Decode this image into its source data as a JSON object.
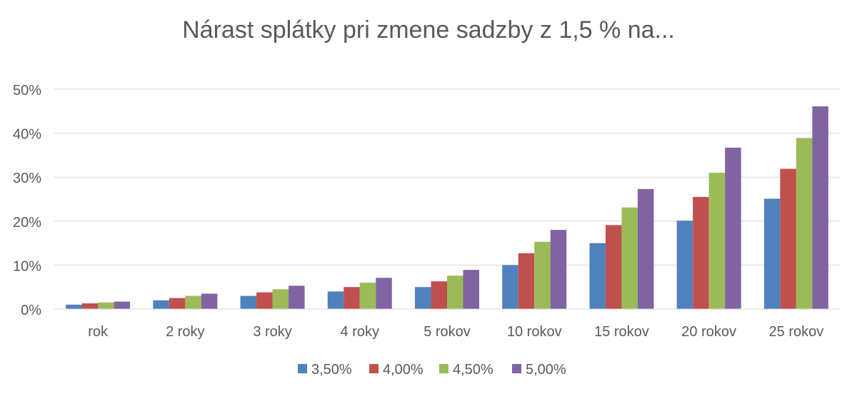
{
  "chart_data": {
    "type": "bar",
    "title": "Nárast splátky pri zmene sadzby z 1,5 % na...",
    "xlabel": "",
    "ylabel": "",
    "categories": [
      "rok",
      "2 roky",
      "3 roky",
      "4 roky",
      "5 rokov",
      "10 rokov",
      "15 rokov",
      "20 rokov",
      "25 rokov"
    ],
    "series": [
      {
        "name": "3,50%",
        "color": "#4f81bd",
        "values": [
          1.0,
          2.0,
          3.0,
          4.0,
          5.0,
          10.0,
          15.0,
          20.1,
          25.1
        ]
      },
      {
        "name": "4,00%",
        "color": "#c0504d",
        "values": [
          1.3,
          2.5,
          3.8,
          5.0,
          6.3,
          12.7,
          19.1,
          25.5,
          31.9
        ]
      },
      {
        "name": "4,50%",
        "color": "#9bbb59",
        "values": [
          1.5,
          3.0,
          4.5,
          6.0,
          7.6,
          15.3,
          23.1,
          31.0,
          38.9
        ]
      },
      {
        "name": "5,00%",
        "color": "#8064a2",
        "values": [
          1.7,
          3.5,
          5.3,
          7.1,
          8.9,
          18.0,
          27.3,
          36.7,
          46.1
        ]
      }
    ],
    "y_ticks": [
      "0%",
      "10%",
      "20%",
      "30%",
      "40%",
      "50%"
    ],
    "ylim": [
      0,
      50
    ],
    "grid": true,
    "legend_position": "bottom"
  }
}
